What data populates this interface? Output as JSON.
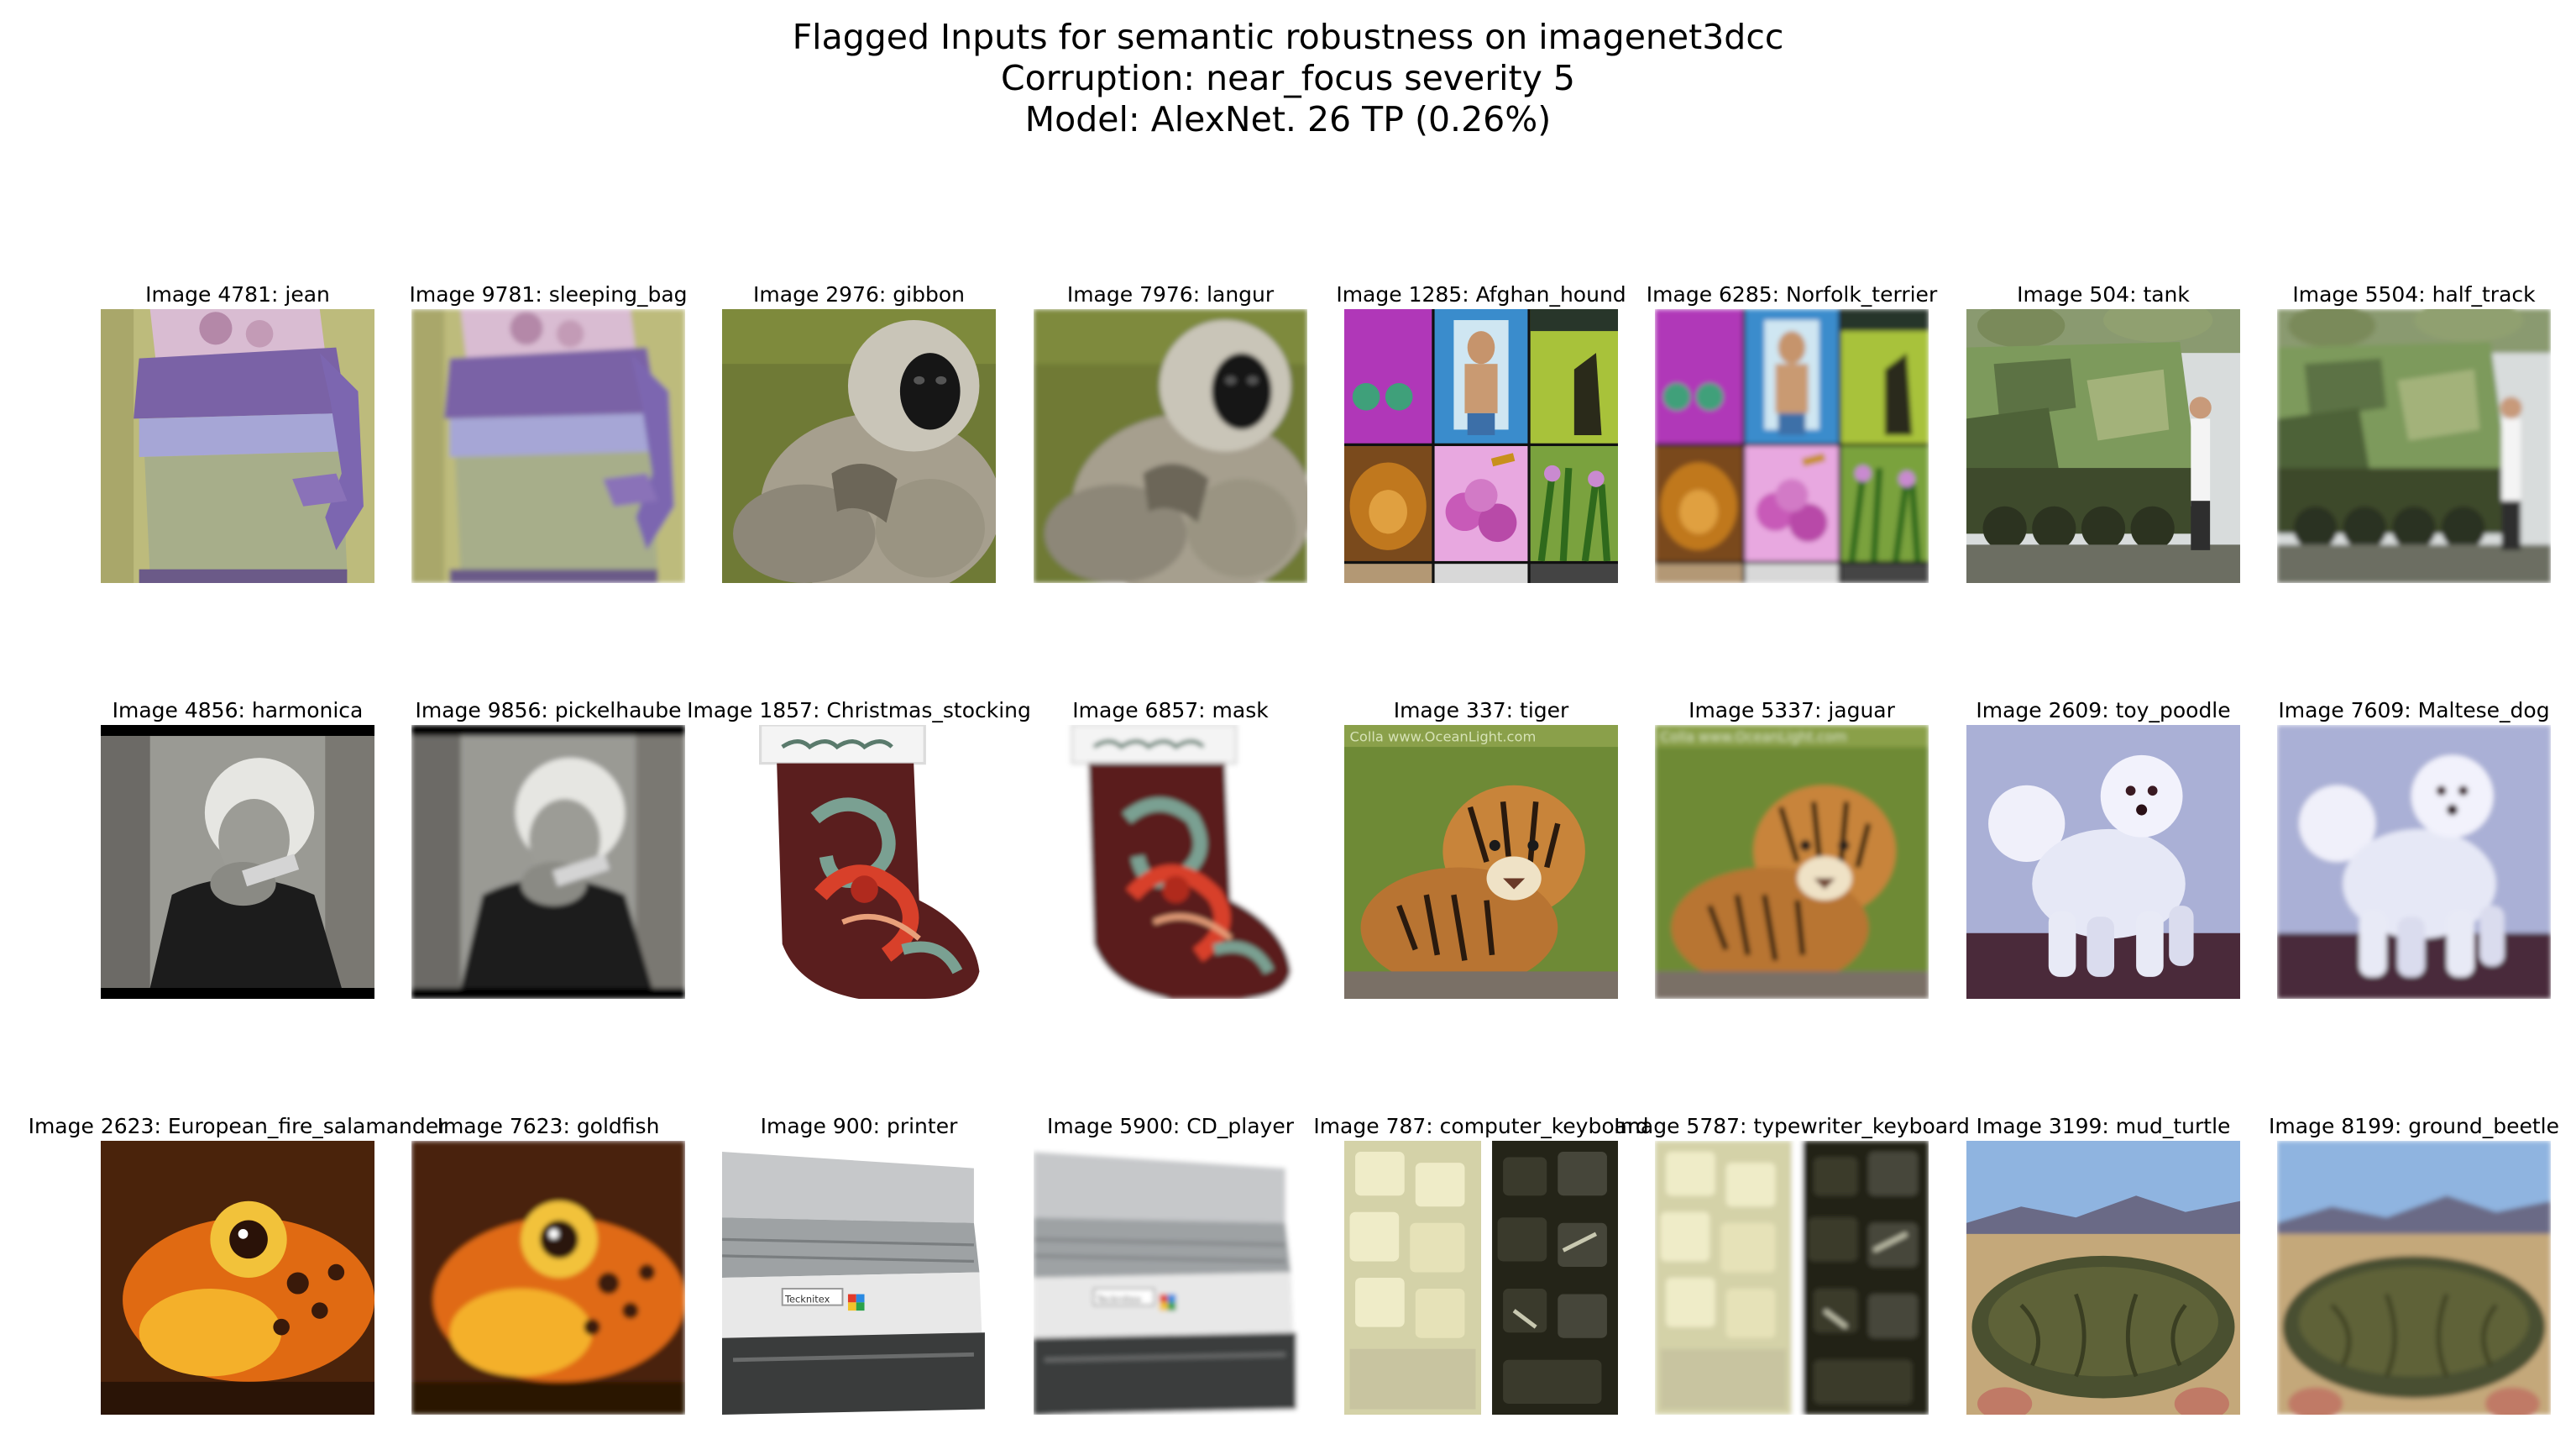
{
  "title": {
    "line1": "Flagged Inputs for semantic robustness on imagenet3dcc",
    "line2": "Corruption: near_focus severity 5",
    "line3": "Model: AlexNet. 26 TP (0.26%)"
  },
  "panels": [
    {
      "label": "Image 4781: jean",
      "scene": "sweater",
      "blur": 0
    },
    {
      "label": "Image 9781: sleeping_bag",
      "scene": "sweater",
      "blur": 1
    },
    {
      "label": "Image 2976: gibbon",
      "scene": "monkey",
      "blur": 0
    },
    {
      "label": "Image 7976: langur",
      "scene": "monkey",
      "blur": 1
    },
    {
      "label": "Image 1285: Afghan_hound",
      "scene": "collage",
      "blur": 0
    },
    {
      "label": "Image 6285: Norfolk_terrier",
      "scene": "collage",
      "blur": 1
    },
    {
      "label": "Image 504: tank",
      "scene": "tank",
      "blur": 0
    },
    {
      "label": "Image 5504: half_track",
      "scene": "tank",
      "blur": 1
    },
    {
      "label": "Image 4856: harmonica",
      "scene": "oldman",
      "blur": 0
    },
    {
      "label": "Image 9856: pickelhaube",
      "scene": "oldman",
      "blur": 1
    },
    {
      "label": "Image 1857: Christmas_stocking",
      "scene": "stocking",
      "blur": 0
    },
    {
      "label": "Image 6857: mask",
      "scene": "stocking",
      "blur": 1
    },
    {
      "label": "Image 337: tiger",
      "scene": "tiger",
      "blur": 0
    },
    {
      "label": "Image 5337: jaguar",
      "scene": "tiger",
      "blur": 1
    },
    {
      "label": "Image 2609: toy_poodle",
      "scene": "poodle",
      "blur": 0
    },
    {
      "label": "Image 7609: Maltese_dog",
      "scene": "poodle",
      "blur": 1
    },
    {
      "label": "Image 2623: European_fire_salamander",
      "scene": "frog",
      "blur": 0
    },
    {
      "label": "Image 7623: goldfish",
      "scene": "frog",
      "blur": 1
    },
    {
      "label": "Image 900: printer",
      "scene": "printer",
      "blur": 0
    },
    {
      "label": "Image 5900: CD_player",
      "scene": "printer",
      "blur": 1
    },
    {
      "label": "Image 787: computer_keyboard",
      "scene": "keyboard",
      "blur": 0
    },
    {
      "label": "Image 5787: typewriter_keyboard",
      "scene": "keyboard",
      "blur": 1
    },
    {
      "label": "Image 3199: mud_turtle",
      "scene": "turtle",
      "blur": 0
    },
    {
      "label": "Image 8199: ground_beetle",
      "scene": "turtle",
      "blur": 1
    }
  ],
  "photo_texts": {
    "oceanlight": "Colla www.OceanLight.com",
    "printer_brand": "Tecknitex"
  }
}
